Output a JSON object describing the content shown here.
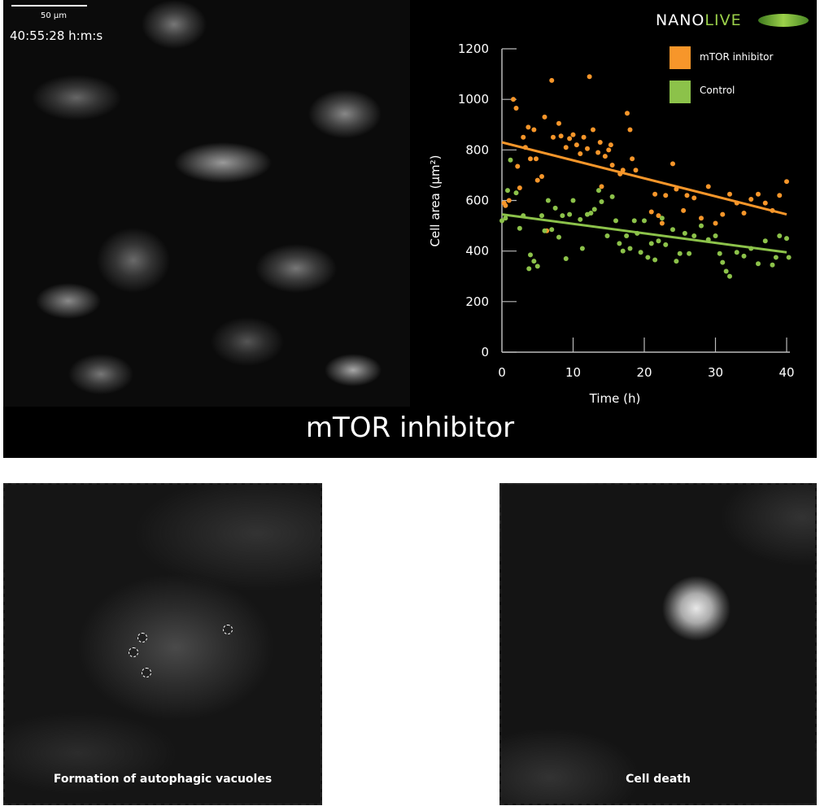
{
  "image_overlay": {
    "scale_label": "50 µm",
    "timestamp": "40:55:28  h:m:s"
  },
  "title": "mTOR inhibitor",
  "logo": {
    "text_a": "NANO",
    "text_b": "LIVE"
  },
  "panels": [
    {
      "caption": "Formation of autophagic vacuoles"
    },
    {
      "caption": "Cell death"
    }
  ],
  "colors": {
    "mtor": "#f7962a",
    "control": "#8cc24a",
    "background": "#000000"
  },
  "chart_data": {
    "type": "scatter",
    "xlabel": "Time (h)",
    "ylabel": "Cell area (µm²)",
    "xlim": [
      0,
      40
    ],
    "ylim": [
      0,
      1200
    ],
    "xticks": [
      0,
      10,
      20,
      30,
      40
    ],
    "yticks": [
      0,
      200,
      400,
      600,
      800,
      1000,
      1200
    ],
    "legend_position": "top-right",
    "grid": false,
    "series": [
      {
        "name": "mTOR inhibitor",
        "color": "#f7962a",
        "trend": [
          [
            0,
            830
          ],
          [
            40,
            545
          ]
        ],
        "points": [
          [
            0.3,
            590
          ],
          [
            0.5,
            580
          ],
          [
            1,
            600
          ],
          [
            1.6,
            1000
          ],
          [
            2,
            965
          ],
          [
            2.2,
            735
          ],
          [
            2.5,
            650
          ],
          [
            3,
            850
          ],
          [
            3.3,
            810
          ],
          [
            3.7,
            890
          ],
          [
            4,
            765
          ],
          [
            4.5,
            880
          ],
          [
            4.8,
            765
          ],
          [
            5,
            680
          ],
          [
            5.6,
            695
          ],
          [
            6,
            930
          ],
          [
            6.3,
            480
          ],
          [
            7,
            1075
          ],
          [
            7.2,
            850
          ],
          [
            8,
            905
          ],
          [
            8.3,
            855
          ],
          [
            9,
            810
          ],
          [
            9.5,
            845
          ],
          [
            10,
            860
          ],
          [
            10.5,
            820
          ],
          [
            11,
            785
          ],
          [
            11.5,
            850
          ],
          [
            12,
            805
          ],
          [
            12.3,
            1090
          ],
          [
            12.8,
            880
          ],
          [
            13.5,
            790
          ],
          [
            13.8,
            830
          ],
          [
            14,
            655
          ],
          [
            14.5,
            775
          ],
          [
            15,
            800
          ],
          [
            15.3,
            820
          ],
          [
            15.5,
            740
          ],
          [
            16.6,
            705
          ],
          [
            17,
            720
          ],
          [
            17.6,
            945
          ],
          [
            18,
            880
          ],
          [
            18.3,
            765
          ],
          [
            18.8,
            720
          ],
          [
            21,
            555
          ],
          [
            21.5,
            625
          ],
          [
            22,
            540
          ],
          [
            22.5,
            510
          ],
          [
            23,
            620
          ],
          [
            24,
            745
          ],
          [
            24.5,
            645
          ],
          [
            25.5,
            560
          ],
          [
            26,
            620
          ],
          [
            27,
            610
          ],
          [
            28,
            530
          ],
          [
            29,
            655
          ],
          [
            30,
            510
          ],
          [
            31,
            545
          ],
          [
            32,
            625
          ],
          [
            33,
            590
          ],
          [
            34,
            550
          ],
          [
            35,
            605
          ],
          [
            36,
            625
          ],
          [
            37,
            590
          ],
          [
            38,
            560
          ],
          [
            39,
            620
          ],
          [
            40,
            675
          ]
        ]
      },
      {
        "name": "Control",
        "color": "#8cc24a",
        "trend": [
          [
            0,
            545
          ],
          [
            40,
            395
          ]
        ],
        "points": [
          [
            0,
            520
          ],
          [
            0.5,
            530
          ],
          [
            1.2,
            760
          ],
          [
            0.8,
            640
          ],
          [
            2,
            630
          ],
          [
            2.5,
            490
          ],
          [
            3,
            540
          ],
          [
            3.8,
            330
          ],
          [
            4,
            385
          ],
          [
            4.5,
            360
          ],
          [
            5,
            340
          ],
          [
            5.6,
            540
          ],
          [
            6,
            480
          ],
          [
            6.5,
            600
          ],
          [
            7,
            485
          ],
          [
            7.5,
            570
          ],
          [
            8,
            455
          ],
          [
            8.5,
            540
          ],
          [
            9,
            370
          ],
          [
            9.5,
            545
          ],
          [
            10,
            600
          ],
          [
            11,
            525
          ],
          [
            11.3,
            410
          ],
          [
            12,
            545
          ],
          [
            12.5,
            550
          ],
          [
            13,
            565
          ],
          [
            13.6,
            640
          ],
          [
            14,
            595
          ],
          [
            14.8,
            460
          ],
          [
            15.5,
            615
          ],
          [
            16,
            520
          ],
          [
            16.5,
            430
          ],
          [
            17,
            400
          ],
          [
            17.5,
            460
          ],
          [
            18,
            410
          ],
          [
            18.6,
            520
          ],
          [
            19,
            470
          ],
          [
            19.5,
            395
          ],
          [
            20,
            520
          ],
          [
            20.5,
            375
          ],
          [
            21,
            430
          ],
          [
            21.5,
            365
          ],
          [
            22,
            440
          ],
          [
            22.5,
            530
          ],
          [
            23,
            425
          ],
          [
            24,
            485
          ],
          [
            24.5,
            360
          ],
          [
            25,
            390
          ],
          [
            25.7,
            470
          ],
          [
            26.3,
            390
          ],
          [
            27,
            460
          ],
          [
            28,
            500
          ],
          [
            29,
            445
          ],
          [
            30,
            460
          ],
          [
            30.6,
            390
          ],
          [
            31,
            355
          ],
          [
            31.5,
            320
          ],
          [
            32,
            300
          ],
          [
            33,
            395
          ],
          [
            34,
            380
          ],
          [
            35,
            410
          ],
          [
            36,
            350
          ],
          [
            37,
            440
          ],
          [
            38,
            345
          ],
          [
            38.5,
            375
          ],
          [
            39,
            460
          ],
          [
            40,
            450
          ],
          [
            40.3,
            375
          ]
        ]
      }
    ]
  }
}
